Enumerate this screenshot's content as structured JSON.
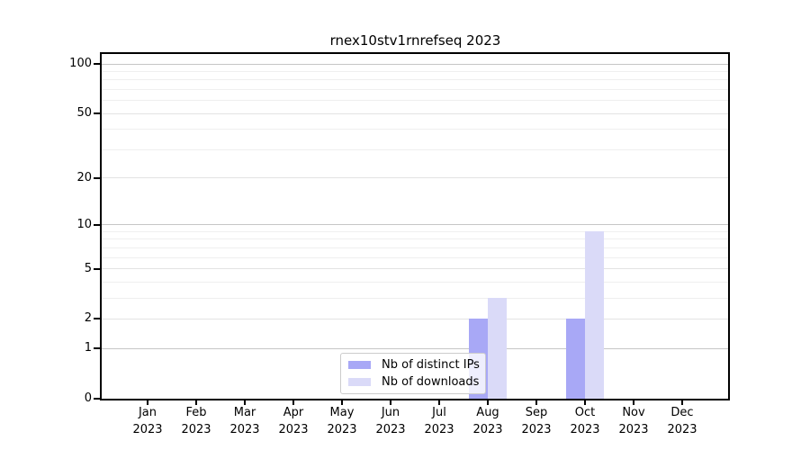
{
  "chart_data": {
    "type": "bar",
    "title": "rnex10stv1rnrefseq 2023",
    "categories": [
      "Jan 2023",
      "Feb 2023",
      "Mar 2023",
      "Apr 2023",
      "May 2023",
      "Jun 2023",
      "Jul 2023",
      "Aug 2023",
      "Sep 2023",
      "Oct 2023",
      "Nov 2023",
      "Dec 2023"
    ],
    "x_tick_months": [
      "Jan",
      "Feb",
      "Mar",
      "Apr",
      "May",
      "Jun",
      "Jul",
      "Aug",
      "Sep",
      "Oct",
      "Nov",
      "Dec"
    ],
    "x_tick_year": "2023",
    "series": [
      {
        "name": "Nb of distinct IPs",
        "color": "#a8a8f6",
        "values": [
          0,
          0,
          0,
          0,
          0,
          0,
          0,
          2,
          0,
          2,
          0,
          0
        ]
      },
      {
        "name": "Nb of downloads",
        "color": "#dadaf8",
        "values": [
          0,
          0,
          0,
          0,
          0,
          0,
          0,
          3,
          0,
          9,
          0,
          0
        ]
      }
    ],
    "y_axis": {
      "scale": "log1p",
      "tick_labels": [
        0,
        1,
        2,
        5,
        10,
        20,
        50,
        100
      ],
      "emphasized_gridlines": [
        1,
        10,
        100
      ],
      "minor_gridlines": [
        3,
        4,
        6,
        7,
        8,
        9,
        30,
        40,
        60,
        70,
        80,
        90
      ],
      "range": [
        0,
        110
      ]
    },
    "legend_position": "lower center",
    "grid": "horizontal only",
    "colors": {
      "spine": "#000000",
      "background": "#ffffff",
      "grid_major": "#e3e3e3",
      "grid_minor": "#efefef",
      "grid_emphasized": "#c6c6c6"
    }
  }
}
